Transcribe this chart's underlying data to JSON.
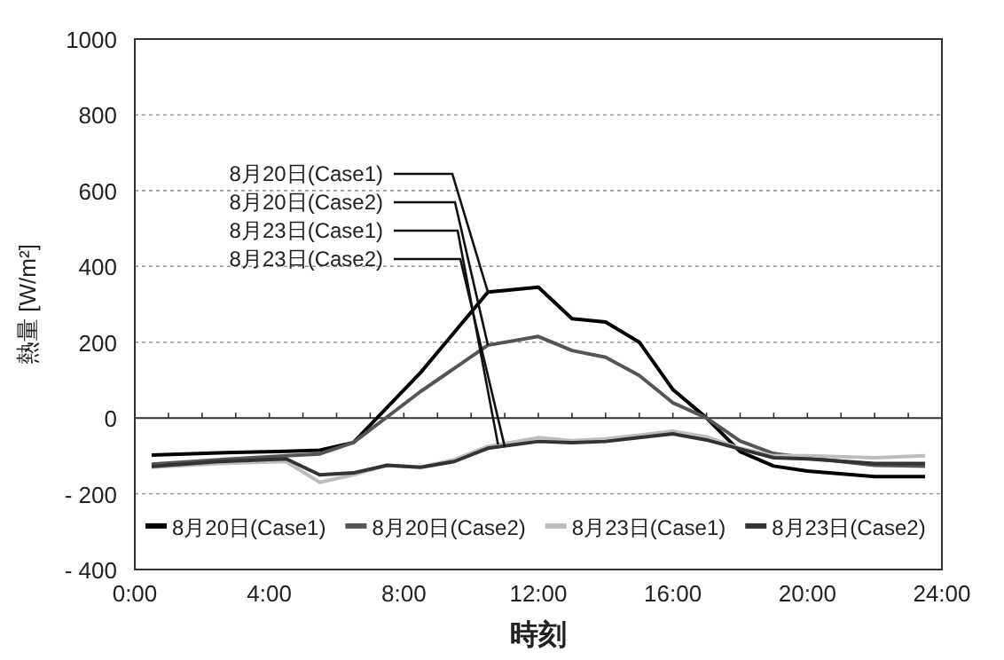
{
  "chart_data": {
    "type": "line",
    "xlabel": "時刻",
    "ylabel": "熱量 [W/m²]",
    "xlim": [
      0,
      24
    ],
    "xticks": [
      {
        "value": 0,
        "label": "0:00"
      },
      {
        "value": 4,
        "label": "4:00"
      },
      {
        "value": 8,
        "label": "8:00"
      },
      {
        "value": 12,
        "label": "12:00"
      },
      {
        "value": 16,
        "label": "16:00"
      },
      {
        "value": 20,
        "label": "20:00"
      },
      {
        "value": 24,
        "label": "24:00"
      }
    ],
    "ylim": [
      -400,
      1000
    ],
    "yticks": [
      {
        "value": -400,
        "label": "- 400"
      },
      {
        "value": -200,
        "label": "- 200"
      },
      0,
      200,
      400,
      600,
      800,
      1000
    ],
    "grid": "y",
    "legend": "bottom",
    "line_style": "solid",
    "marker": "none",
    "series": [
      {
        "name": "8月20日(Case1)",
        "color": "#000000",
        "x": [
          0.5,
          2.5,
          4.5,
          5.5,
          6.5,
          8.5,
          10.5,
          12,
          13,
          14,
          15,
          16,
          17,
          18,
          19,
          20,
          22,
          23.5
        ],
        "values": [
          -98,
          -92,
          -88,
          -85,
          -65,
          120,
          332,
          345,
          262,
          253,
          200,
          75,
          0,
          -89,
          -127,
          -140,
          -155,
          -155
        ]
      },
      {
        "name": "8月20日(Case2)",
        "color": "#555555",
        "x": [
          0.5,
          2.5,
          4.5,
          5.5,
          6.5,
          8.5,
          10.5,
          12,
          13,
          14,
          15,
          16,
          17,
          18,
          19,
          20,
          22,
          23.5
        ],
        "values": [
          -122,
          -110,
          -100,
          -95,
          -65,
          70,
          192,
          215,
          178,
          160,
          112,
          40,
          0,
          -61,
          -94,
          -105,
          -125,
          -127
        ]
      },
      {
        "name": "8月23日(Case1)",
        "color": "#bdbdbd",
        "x": [
          0.5,
          2.5,
          4.5,
          5.5,
          6.5,
          7.5,
          8.5,
          9.5,
          10.5,
          12,
          13,
          14,
          15,
          16,
          17,
          18,
          19,
          20,
          22,
          23.5
        ],
        "values": [
          -130,
          -120,
          -115,
          -170,
          -150,
          -125,
          -130,
          -110,
          -75,
          -52,
          -60,
          -55,
          -45,
          -35,
          -50,
          -80,
          -100,
          -100,
          -105,
          -100
        ]
      },
      {
        "name": "8月23日(Case2)",
        "color": "#333333",
        "x": [
          0.5,
          2.5,
          4.5,
          5.5,
          6.5,
          7.5,
          8.5,
          9.5,
          10.5,
          12,
          13,
          14,
          15,
          16,
          17,
          18,
          19,
          20,
          22,
          23.5
        ],
        "values": [
          -128,
          -115,
          -108,
          -150,
          -145,
          -125,
          -130,
          -115,
          -80,
          -62,
          -65,
          -62,
          -52,
          -42,
          -58,
          -82,
          -105,
          -108,
          -120,
          -120
        ]
      }
    ],
    "annotations": [
      {
        "text": "8月20日(Case1)",
        "x": 10.5,
        "y": 332
      },
      {
        "text": "8月20日(Case2)",
        "x": 10.5,
        "y": 192
      },
      {
        "text": "8月23日(Case1)",
        "x": 10.8,
        "y": -70
      },
      {
        "text": "8月23日(Case2)",
        "x": 11,
        "y": -76
      }
    ]
  }
}
